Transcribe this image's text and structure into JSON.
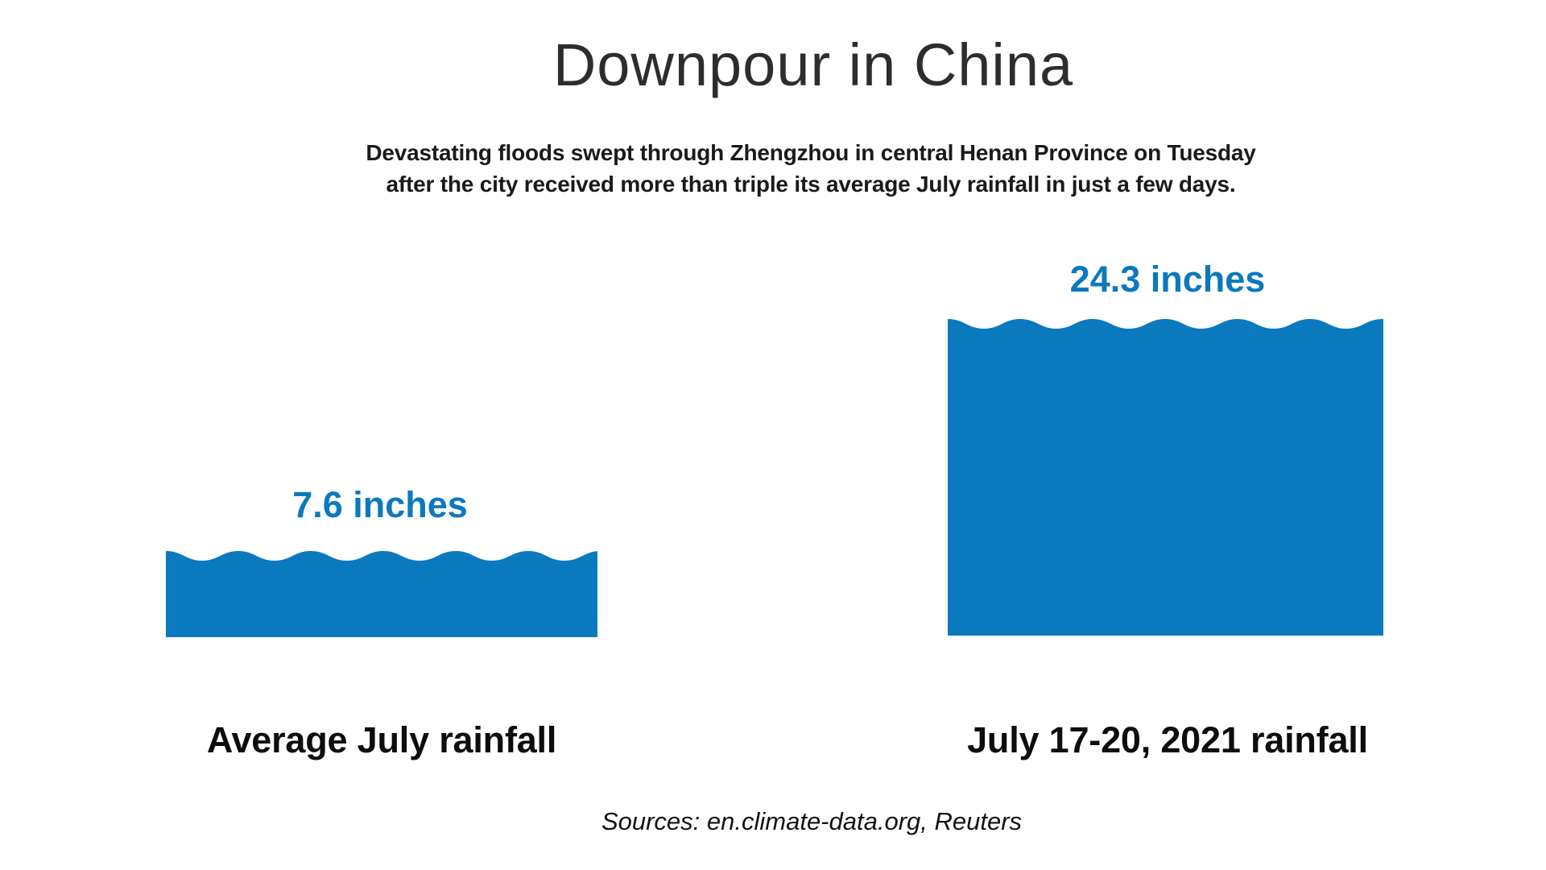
{
  "header": {
    "title": "Downpour in China",
    "subtitle_line1": "Devastating floods swept through Zhengzhou in central Henan Province on Tuesday",
    "subtitle_line2": "after the city received more than triple its average July rainfall in just a few days."
  },
  "chart_data": {
    "type": "bar",
    "title": "Downpour in China",
    "subtitle": "Devastating floods swept through Zhengzhou in central Henan Province on Tuesday after the city received more than triple its average July rainfall in just a few days.",
    "categories": [
      "Average July rainfall",
      "July 17-20, 2021 rainfall"
    ],
    "values": [
      7.6,
      24.3
    ],
    "unit": "inches",
    "value_labels": [
      "7.6 inches",
      "24.3 inches"
    ],
    "orientation": "vertical",
    "grid": false,
    "legend_position": "none",
    "axis_labels": "none",
    "style": "pictorial water-fill bars with wavy top edges",
    "bar_color": "#0b79be",
    "value_label_color": "#0b79be",
    "category_label_color": "#0d0d0d"
  },
  "footer": {
    "sources": "Sources: en.climate-data.org, Reuters"
  }
}
